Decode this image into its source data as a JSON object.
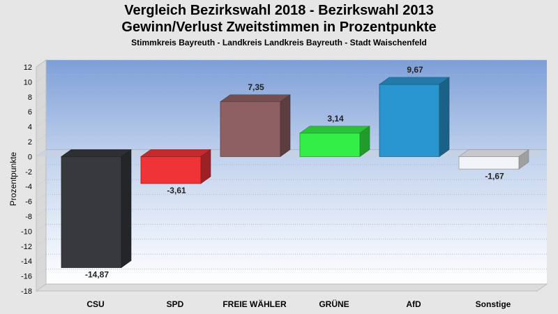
{
  "title": "Vergleich Bezirkswahl 2018 - Bezirkswahl 2013",
  "subtitle": "Gewinn/Verlust Zweitstimmen in Prozentpunkte",
  "subsubtitle": "Stimmkreis Bayreuth - Landkreis Landkreis Bayreuth - Stadt Waischenfeld",
  "chart_data": {
    "type": "bar",
    "title": "Vergleich Bezirkswahl 2018 - Bezirkswahl 2013",
    "subtitle": "Gewinn/Verlust Zweitstimmen in Prozentpunkte",
    "xlabel": "",
    "ylabel": "Prozentpunkte",
    "ylim": [
      -18,
      12
    ],
    "yticks": [
      12,
      10,
      8,
      6,
      4,
      2,
      0,
      -2,
      -4,
      -6,
      -8,
      -10,
      -12,
      -14,
      -16,
      -18
    ],
    "grid": true,
    "categories": [
      "CSU",
      "SPD",
      "FREIE WÄHLER",
      "GRÜNE",
      "AfD",
      "Sonstige"
    ],
    "values": [
      -14.87,
      -3.61,
      7.35,
      3.14,
      9.67,
      -1.67
    ],
    "labels": [
      "-14,87",
      "-3,61",
      "7,35",
      "3,14",
      "9,67",
      "-1,67"
    ],
    "colors": [
      "#37393d",
      "#f03337",
      "#8e5f63",
      "#33ee44",
      "#2895cf",
      "#f2f4f8"
    ]
  }
}
